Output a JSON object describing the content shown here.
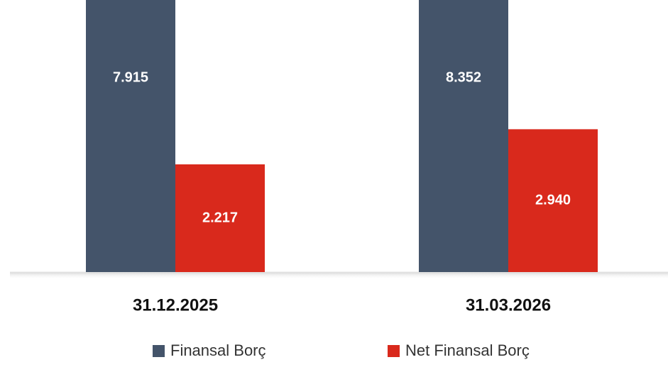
{
  "chart_data": {
    "type": "bar",
    "categories": [
      "31.12.2025",
      "31.03.2026"
    ],
    "series": [
      {
        "name": "Finansal Borç",
        "color": "#44546a",
        "values": [
          7915,
          8352
        ],
        "value_labels": [
          "7.915",
          "8.352"
        ]
      },
      {
        "name": "Net Finansal Borç",
        "color": "#d9291c",
        "values": [
          2217,
          2940
        ],
        "value_labels": [
          "2.217",
          "2.940"
        ]
      }
    ],
    "ylim": [
      0,
      5600
    ],
    "legend": "bottom"
  }
}
